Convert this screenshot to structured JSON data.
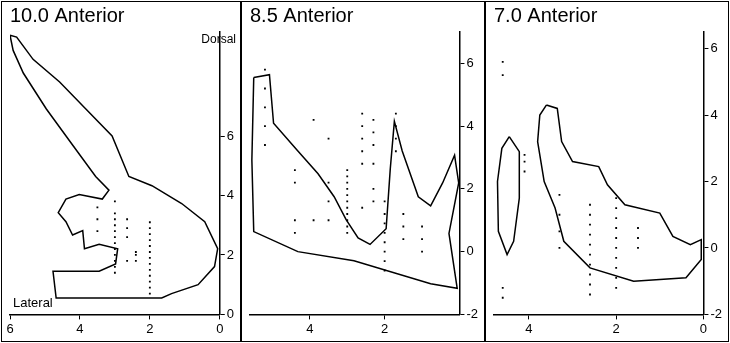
{
  "chart_data": [
    {
      "type": "scatter",
      "title": "10.0 Anterior",
      "xlabel": "Lateral",
      "ylabel": "Dorsal",
      "xlim": [
        6,
        0
      ],
      "ylim": [
        0,
        9.5
      ],
      "xticks": [
        6,
        4,
        2,
        0
      ],
      "yticks": [
        0,
        2,
        4,
        6
      ],
      "grid": false,
      "series": [
        {
          "type": "line",
          "color": "#000000",
          "line_style": "solid",
          "x": [
            6.0,
            5.81,
            5.34,
            4.58,
            3.83,
            3.08,
            2.6,
            1.94,
            1.09,
            0.43,
            0.06,
            0.15,
            0.62,
            1.38,
            1.66,
            4.68,
            4.77,
            3.45,
            2.98,
            2.92,
            3.45,
            3.87,
            3.92,
            4.21,
            4.4,
            4.62,
            4.4,
            4.02,
            3.36,
            3.17,
            3.55,
            4.21,
            4.96,
            5.62,
            5.91
          ],
          "y": [
            9.39,
            9.33,
            8.58,
            7.82,
            6.91,
            6.0,
            4.64,
            4.33,
            3.73,
            3.12,
            2.21,
            1.61,
            1.0,
            0.7,
            0.55,
            0.55,
            1.45,
            1.45,
            1.7,
            2.21,
            2.36,
            2.21,
            2.82,
            2.67,
            3.12,
            3.42,
            3.88,
            4.03,
            3.88,
            4.18,
            4.64,
            5.7,
            6.91,
            8.12,
            8.88
          ]
        },
        {
          "type": "scatter",
          "color": "#000000",
          "marker": "square",
          "x": [
            3.0,
            3.0,
            3.0,
            3.0,
            3.0,
            3.0,
            3.0,
            3.0,
            3.0,
            3.0,
            3.0,
            3.0,
            3.5,
            3.5,
            3.5,
            2.65,
            2.65,
            2.65,
            2.65,
            2.0,
            2.0,
            2.0,
            2.0,
            2.0,
            2.0,
            2.0,
            2.0,
            2.0,
            2.0,
            2.0,
            2.0,
            2.0,
            2.4,
            2.4,
            2.4
          ],
          "y": [
            1.4,
            1.6,
            1.8,
            2.0,
            2.2,
            2.4,
            2.6,
            2.8,
            3.0,
            3.2,
            3.4,
            3.8,
            2.8,
            3.2,
            3.6,
            1.8,
            2.6,
            2.9,
            3.2,
            0.7,
            0.9,
            1.1,
            1.3,
            1.5,
            1.7,
            1.9,
            2.1,
            2.3,
            2.5,
            2.7,
            2.9,
            3.1,
            1.8,
            2.0,
            2.1
          ]
        }
      ]
    },
    {
      "type": "scatter",
      "title": "8.5 Anterior",
      "xlim": [
        5.6,
        0
      ],
      "ylim": [
        -2,
        7
      ],
      "xticks": [
        4,
        2
      ],
      "yticks": [
        -2,
        0,
        2,
        4,
        6
      ],
      "grid": false,
      "series": [
        {
          "type": "line",
          "color": "#000000",
          "line_style": "solid",
          "x": [
            5.5,
            5.08,
            4.97,
            4.32,
            3.78,
            3.35,
            3.03,
            2.71,
            2.39,
            1.96,
            1.85,
            1.74,
            1.53,
            1.1,
            0.77,
            0.45,
            0.13,
            0.02,
            0.28,
            0.06,
            0.77,
            2.82,
            4.32,
            5.5,
            5.55
          ],
          "y": [
            5.55,
            5.64,
            4.09,
            3.21,
            2.48,
            1.75,
            1.02,
            0.44,
            0.23,
            0.73,
            2.63,
            4.15,
            3.21,
            1.75,
            1.46,
            2.19,
            3.07,
            2.19,
            0.58,
            -1.17,
            -1.02,
            -0.29,
            0.0,
            0.64,
            2.92
          ]
        },
        {
          "type": "scatter",
          "color": "#000000",
          "marker": "square",
          "x": [
            5.2,
            5.2,
            5.2,
            5.2,
            5.2,
            4.4,
            4.4,
            4.4,
            4.4,
            3.9,
            3.9,
            3.5,
            3.5,
            3.5,
            3.5,
            3.0,
            3.0,
            3.0,
            3.0,
            3.0,
            3.0,
            3.0,
            3.0,
            3.0,
            3.0,
            3.0,
            2.6,
            2.6,
            2.6,
            2.6,
            2.6,
            2.6,
            2.3,
            2.3,
            2.3,
            2.3,
            2.3,
            2.3,
            2.0,
            2.0,
            2.0,
            2.0,
            2.0,
            2.0,
            2.0,
            2.0,
            1.7,
            1.7,
            1.7,
            1.7,
            1.5,
            1.5,
            1.5,
            1.0,
            1.0,
            1.0
          ],
          "y": [
            5.8,
            5.2,
            4.6,
            4.0,
            3.4,
            2.6,
            2.2,
            1.0,
            0.6,
            4.2,
            1.0,
            3.6,
            2.2,
            1.6,
            1.0,
            0.6,
            0.8,
            1.0,
            1.2,
            1.4,
            1.6,
            1.8,
            2.0,
            2.2,
            2.4,
            2.6,
            4.4,
            4.0,
            3.6,
            3.2,
            2.8,
            1.4,
            4.2,
            3.8,
            3.4,
            2.8,
            2.0,
            1.6,
            1.6,
            1.2,
            0.9,
            0.6,
            0.3,
            0.0,
            -0.3,
            -0.6,
            4.4,
            4.0,
            3.6,
            3.2,
            1.2,
            0.8,
            0.4,
            0.8,
            0.4,
            0.0
          ]
        }
      ]
    },
    {
      "type": "scatter",
      "title": "7.0 Anterior",
      "xlim": [
        4.8,
        0
      ],
      "ylim": [
        -2,
        6.5
      ],
      "xticks": [
        4,
        2,
        0
      ],
      "yticks": [
        -2,
        0,
        2,
        4,
        6
      ],
      "grid": false,
      "series": [
        {
          "type": "line",
          "color": "#000000",
          "line_style": "solid",
          "x": [
            4.45,
            4.22,
            4.22,
            4.35,
            4.5,
            4.7,
            4.72,
            4.62
          ],
          "y": [
            3.35,
            2.9,
            1.5,
            0.2,
            -0.2,
            0.5,
            2.0,
            3.0
          ]
        },
        {
          "type": "line",
          "color": "#000000",
          "line_style": "solid",
          "x": [
            3.6,
            3.35,
            3.25,
            3.0,
            2.4,
            2.2,
            1.8,
            1.0,
            0.7,
            0.3,
            0.05,
            0.05,
            0.4,
            1.6,
            2.6,
            3.2,
            3.4,
            3.65,
            3.8,
            3.75
          ],
          "y": [
            4.3,
            4.2,
            3.2,
            2.6,
            2.45,
            1.9,
            1.3,
            1.05,
            0.35,
            0.1,
            0.25,
            -0.35,
            -0.9,
            -1.0,
            -0.6,
            0.2,
            1.2,
            2.0,
            3.2,
            4.0
          ]
        },
        {
          "type": "scatter",
          "color": "#000000",
          "marker": "square",
          "x": [
            4.6,
            4.6,
            4.6,
            4.6,
            4.1,
            4.1,
            4.1,
            3.3,
            3.3,
            3.3,
            3.3,
            2.6,
            2.6,
            2.6,
            2.6,
            2.6,
            2.6,
            2.6,
            2.6,
            2.6,
            2.6,
            2.0,
            2.0,
            2.0,
            2.0,
            2.0,
            2.0,
            2.0,
            2.0,
            2.0,
            2.0,
            1.5,
            1.5,
            1.5
          ],
          "y": [
            5.6,
            5.2,
            -1.2,
            -1.5,
            2.8,
            2.6,
            2.3,
            1.6,
            1.0,
            0.5,
            0.0,
            1.3,
            1.0,
            0.7,
            0.4,
            0.1,
            -0.2,
            -0.5,
            -0.8,
            -1.1,
            -1.4,
            1.5,
            1.2,
            0.9,
            0.6,
            0.3,
            0.0,
            -0.3,
            -0.6,
            -0.9,
            -1.2,
            0.6,
            0.3,
            0.0
          ]
        }
      ]
    }
  ]
}
